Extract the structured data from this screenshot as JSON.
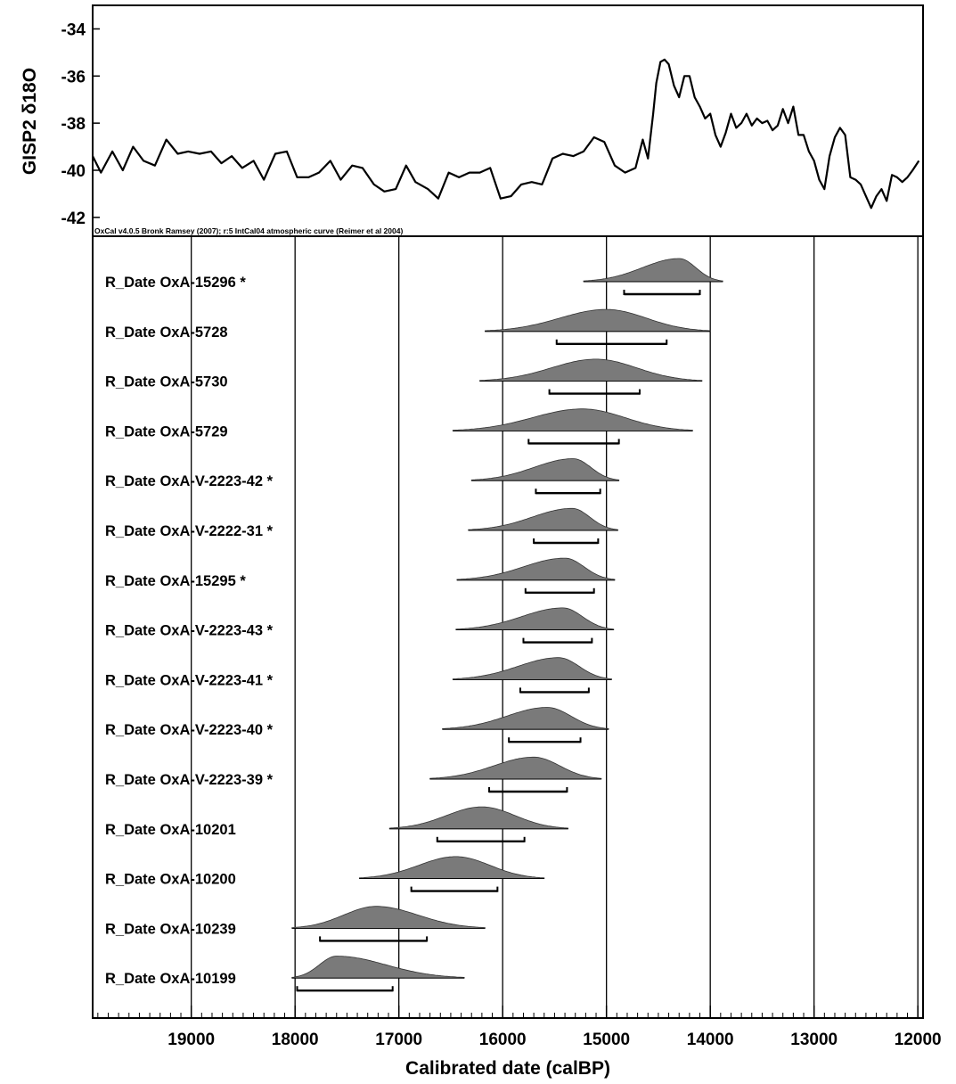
{
  "chart_data": [
    {
      "type": "line",
      "ylabel": "GISP2 δ18O",
      "ylim": [
        -42.8,
        -33
      ],
      "yticks": [
        -34,
        -36,
        -38,
        -40,
        -42
      ],
      "xlim": [
        19950,
        11950
      ],
      "x_reversed": true,
      "series": [
        {
          "x": [
            19950,
            19870,
            19760,
            19660,
            19560,
            19460,
            19350,
            19240,
            19130,
            19030,
            18920,
            18810,
            18710,
            18610,
            18510,
            18400,
            18300,
            18190,
            18080,
            17980,
            17870,
            17770,
            17660,
            17560,
            17450,
            17350,
            17240,
            17140,
            17030,
            16930,
            16840,
            16720,
            16620,
            16520,
            16420,
            16320,
            16220,
            16120,
            16020,
            15920,
            15820,
            15720,
            15620,
            15520,
            15420,
            15320,
            15220,
            15120,
            15020,
            14920,
            14820,
            14720,
            14650,
            14600,
            14550,
            14520,
            14480,
            14440,
            14400,
            14350,
            14300,
            14250,
            14200,
            14150,
            14100,
            14050,
            14000,
            13950,
            13900,
            13850,
            13800,
            13750,
            13700,
            13650,
            13600,
            13550,
            13500,
            13450,
            13400,
            13350,
            13300,
            13250,
            13200,
            13150,
            13100,
            13050,
            13000,
            12950,
            12900,
            12850,
            12800,
            12750,
            12700,
            12650,
            12600,
            12550,
            12500,
            12450,
            12400,
            12350,
            12300,
            12250,
            12200,
            12150,
            12100,
            12050,
            11990
          ],
          "y": [
            -39.4,
            -40.1,
            -39.2,
            -40,
            -39,
            -39.6,
            -39.8,
            -38.7,
            -39.3,
            -39.2,
            -39.3,
            -39.2,
            -39.7,
            -39.4,
            -39.9,
            -39.6,
            -40.4,
            -39.3,
            -39.2,
            -40.3,
            -40.3,
            -40.1,
            -39.6,
            -40.4,
            -39.8,
            -39.9,
            -40.6,
            -40.9,
            -40.8,
            -39.8,
            -40.5,
            -40.8,
            -41.2,
            -40.1,
            -40.3,
            -40.1,
            -40.1,
            -39.9,
            -41.2,
            -41.1,
            -40.6,
            -40.5,
            -40.6,
            -39.5,
            -39.3,
            -39.4,
            -39.2,
            -38.6,
            -38.8,
            -39.8,
            -40.1,
            -39.9,
            -38.7,
            -39.5,
            -37.6,
            -36.3,
            -35.4,
            -35.3,
            -35.5,
            -36.4,
            -36.9,
            -36,
            -36,
            -36.9,
            -37.3,
            -37.8,
            -37.6,
            -38.5,
            -39,
            -38.4,
            -37.6,
            -38.2,
            -38,
            -37.6,
            -38.1,
            -37.8,
            -38,
            -37.9,
            -38.3,
            -38.1,
            -37.4,
            -38,
            -37.3,
            -38.5,
            -38.5,
            -39.2,
            -39.6,
            -40.4,
            -40.8,
            -39.4,
            -38.6,
            -38.2,
            -38.5,
            -40.3,
            -40.4,
            -40.6,
            -41.1,
            -41.6,
            -41.1,
            -40.8,
            -41.3,
            -40.2,
            -40.3,
            -40.5,
            -40.3,
            -40,
            -39.6
          ]
        }
      ],
      "annotation": "OxCal v4.0.5 Bronk Ramsey (2007); r:5 IntCal04 atmospheric curve (Reimer et al 2004)"
    },
    {
      "type": "area",
      "xlabel": "Calibrated date (calBP)",
      "xlim": [
        19950,
        11950
      ],
      "x_reversed": true,
      "xticks": [
        19000,
        18000,
        17000,
        16000,
        15000,
        14000,
        13000,
        12000
      ],
      "series": [
        {
          "name": "R_Date OxA-15296 *",
          "mode": 14300,
          "range": [
            15220,
            13880
          ],
          "hpd": [
            14830,
            14100
          ],
          "height": 1.0
        },
        {
          "name": "R_Date OxA-5728",
          "mode": 15000,
          "range": [
            16170,
            14000
          ],
          "hpd": [
            15480,
            14420
          ],
          "height": 0.95
        },
        {
          "name": "R_Date OxA-5730",
          "mode": 15100,
          "range": [
            16220,
            14080
          ],
          "hpd": [
            15550,
            14680
          ],
          "height": 0.95
        },
        {
          "name": "R_Date OxA-5729",
          "mode": 15230,
          "range": [
            16480,
            14170
          ],
          "hpd": [
            15750,
            14880
          ],
          "height": 0.95
        },
        {
          "name": "R_Date OxA-V-2223-42 *",
          "mode": 15320,
          "range": [
            16300,
            14880
          ],
          "hpd": [
            15680,
            15060
          ],
          "height": 0.95
        },
        {
          "name": "R_Date OxA-V-2222-31 *",
          "mode": 15330,
          "range": [
            16330,
            14890
          ],
          "hpd": [
            15700,
            15080
          ],
          "height": 0.95
        },
        {
          "name": "R_Date OxA-15295 *",
          "mode": 15400,
          "range": [
            16440,
            14920
          ],
          "hpd": [
            15780,
            15120
          ],
          "height": 0.95
        },
        {
          "name": "R_Date OxA-V-2223-43 *",
          "mode": 15420,
          "range": [
            16450,
            14930
          ],
          "hpd": [
            15800,
            15140
          ],
          "height": 0.95
        },
        {
          "name": "R_Date OxA-V-2223-41 *",
          "mode": 15460,
          "range": [
            16480,
            14950
          ],
          "hpd": [
            15830,
            15170
          ],
          "height": 0.95
        },
        {
          "name": "R_Date OxA-V-2223-40 *",
          "mode": 15570,
          "range": [
            16580,
            14980
          ],
          "hpd": [
            15940,
            15250
          ],
          "height": 0.95
        },
        {
          "name": "R_Date OxA-V-2223-39 *",
          "mode": 15700,
          "range": [
            16700,
            15050
          ],
          "hpd": [
            16130,
            15380
          ],
          "height": 0.95
        },
        {
          "name": "R_Date OxA-10201",
          "mode": 16200,
          "range": [
            17090,
            15370
          ],
          "hpd": [
            16630,
            15790
          ],
          "height": 0.95
        },
        {
          "name": "R_Date OxA-10200",
          "mode": 16450,
          "range": [
            17380,
            15600
          ],
          "hpd": [
            16880,
            16050
          ],
          "height": 0.95
        },
        {
          "name": "R_Date OxA-10239",
          "mode": 17220,
          "range": [
            18030,
            16170
          ],
          "hpd": [
            17760,
            16730
          ],
          "height": 0.95
        },
        {
          "name": "R_Date OxA-10199",
          "mode": 17600,
          "range": [
            18030,
            16370
          ],
          "hpd": [
            17980,
            17060
          ],
          "height": 0.95
        }
      ]
    }
  ]
}
